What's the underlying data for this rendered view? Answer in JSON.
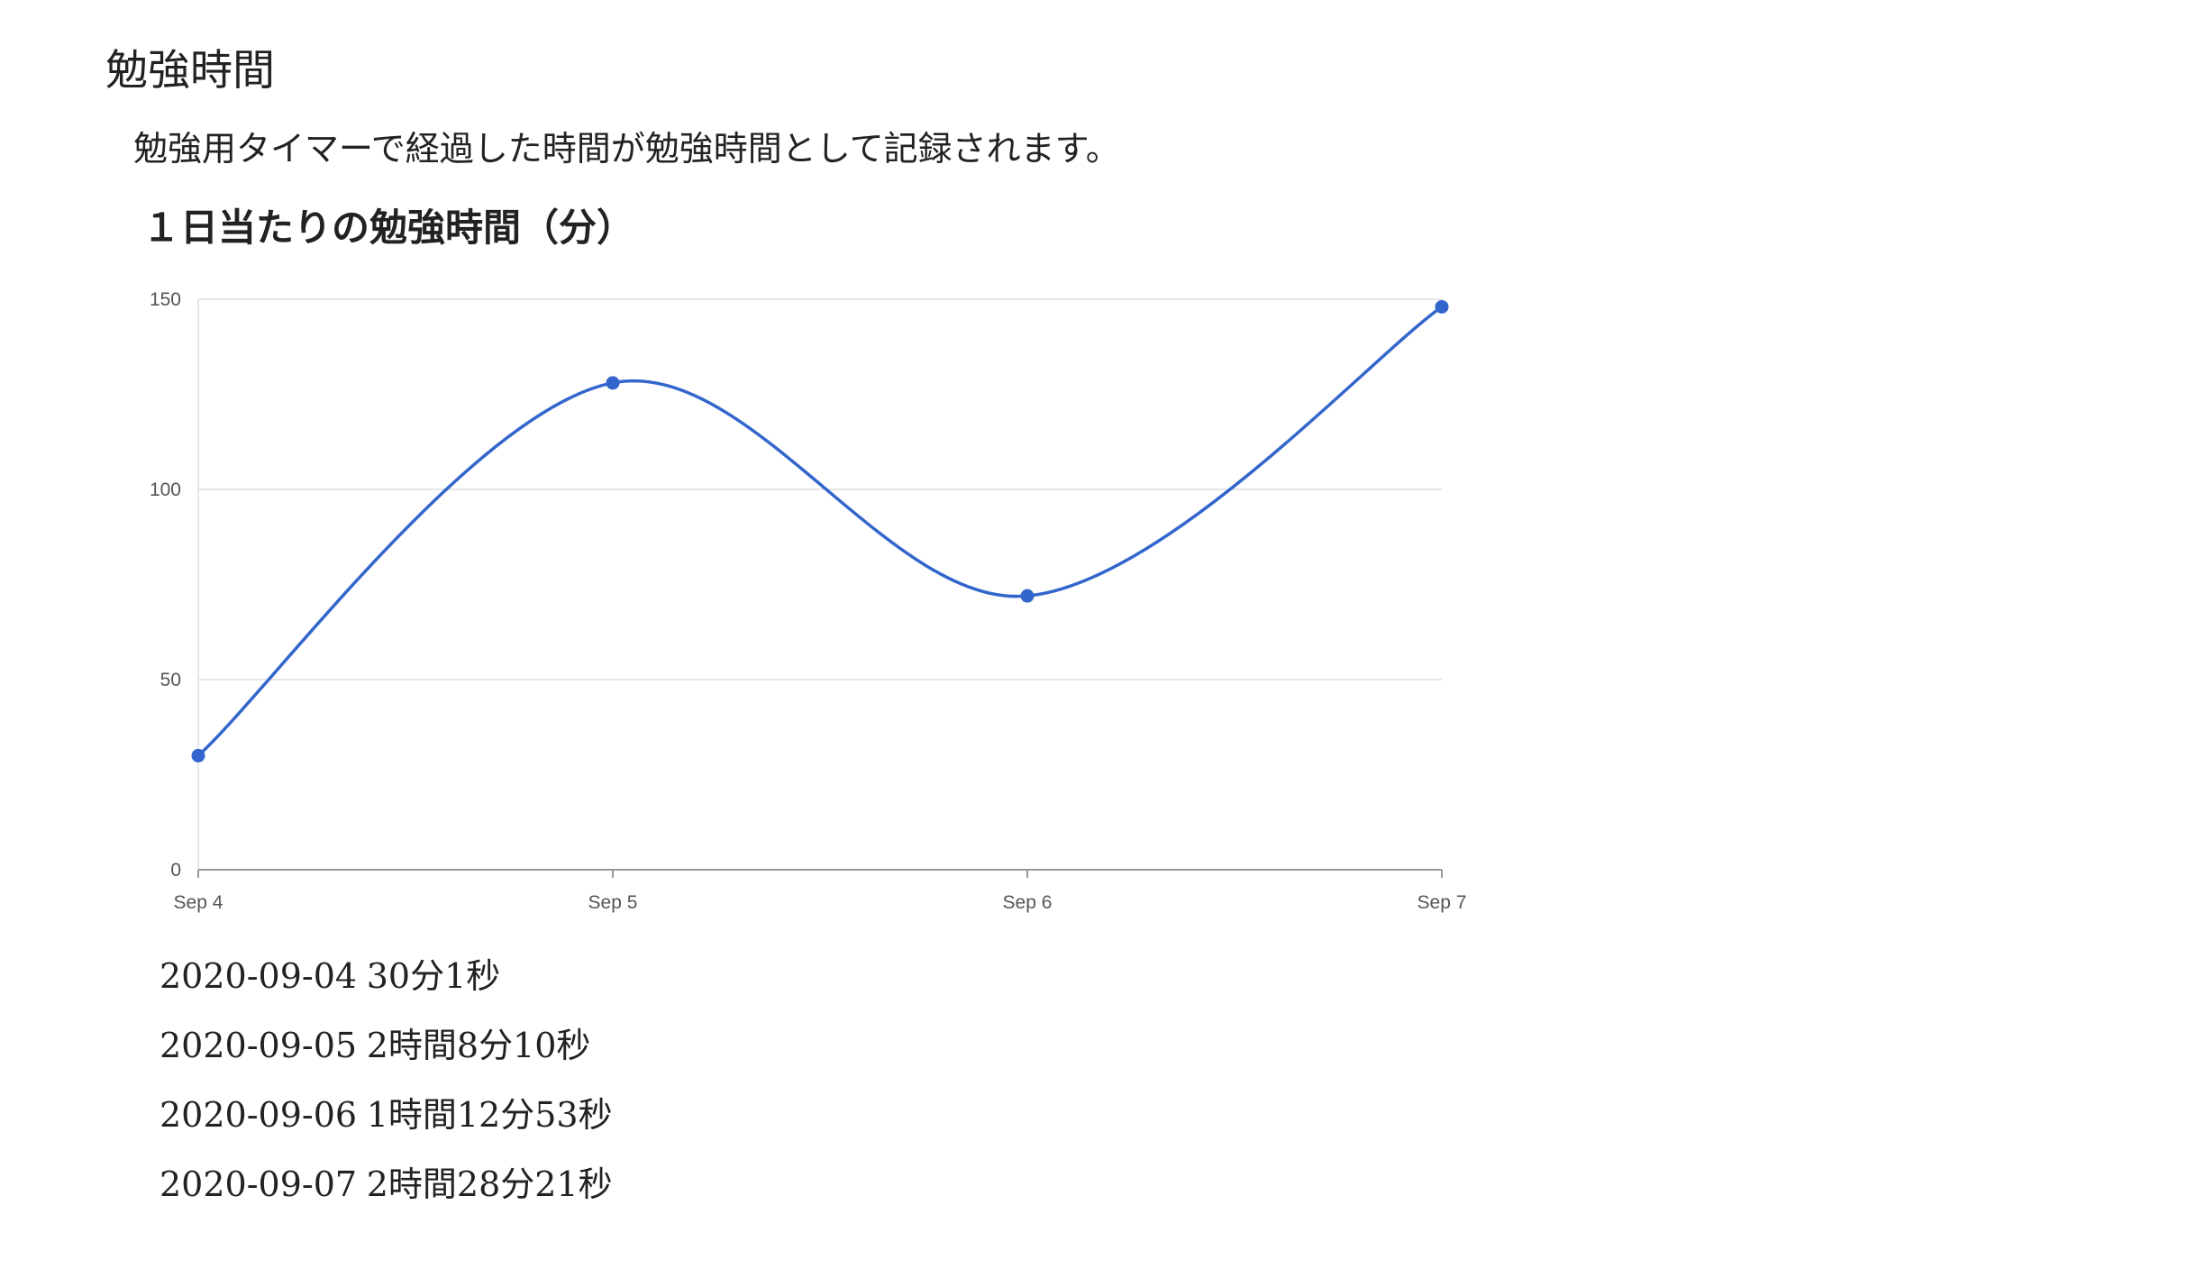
{
  "page": {
    "title": "勉強時間",
    "description": "勉強用タイマーで経過した時間が勉強時間として記録されます。",
    "chart_heading": "１日当たりの勉強時間（分）"
  },
  "chart_data": {
    "type": "line",
    "title": "１日当たりの勉強時間（分）",
    "categories": [
      "Sep 4",
      "Sep 5",
      "Sep 6",
      "Sep 7"
    ],
    "series": [
      {
        "values": [
          30,
          128,
          72,
          148
        ],
        "color": "#3366cc"
      }
    ],
    "xlabel": "",
    "ylabel": "",
    "ylim": [
      0,
      150
    ],
    "yticks": [
      "0",
      "50",
      "100",
      "150"
    ],
    "smooth": true,
    "grid": true,
    "legend": "none"
  },
  "records": [
    {
      "date": "2020-09-04",
      "duration": "30分1秒"
    },
    {
      "date": "2020-09-05",
      "duration": "2時間8分10秒"
    },
    {
      "date": "2020-09-06",
      "duration": "1時間12分53秒"
    },
    {
      "date": "2020-09-07",
      "duration": "2時間28分21秒"
    }
  ]
}
